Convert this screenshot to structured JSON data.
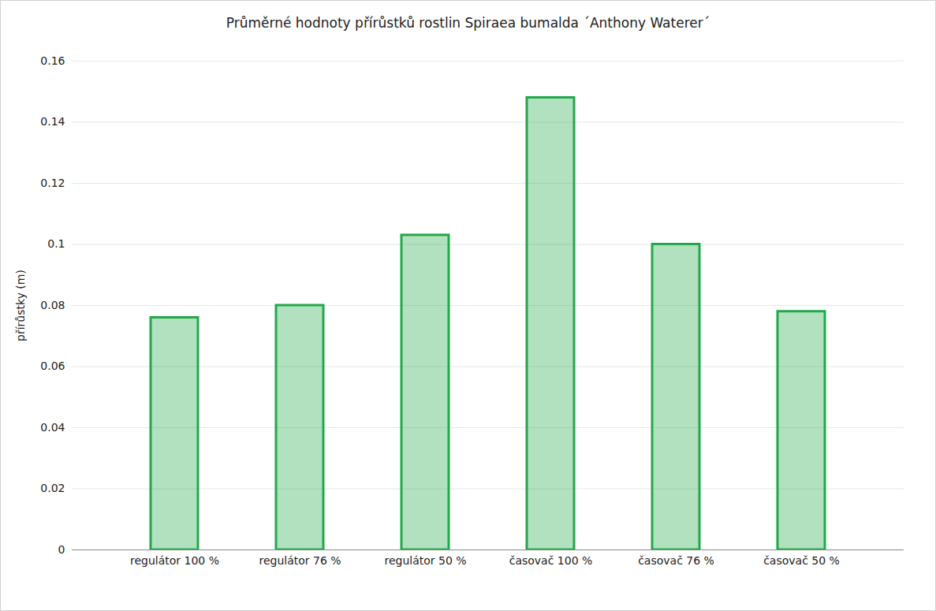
{
  "chart_data": {
    "type": "bar",
    "title": "Průměrné hodnoty přírůstků rostlin Spiraea bumalda ´Anthony Waterer´",
    "y_label": "přírůstky (m)",
    "categories": [
      "regulátor 100 %",
      "regulátor 76 %",
      "regulátor 50 %",
      "časovač 100 %",
      "časovač 76 %",
      "časovač 50 %"
    ],
    "values": [
      0.076,
      0.08,
      0.103,
      0.148,
      0.1,
      0.078
    ],
    "color": "#22a84a",
    "ylim": [
      0,
      0.16
    ],
    "yticks": [
      0,
      0.02,
      0.04,
      0.06,
      0.08,
      0.1,
      0.12,
      0.14,
      0.16
    ],
    "grid": true
  }
}
